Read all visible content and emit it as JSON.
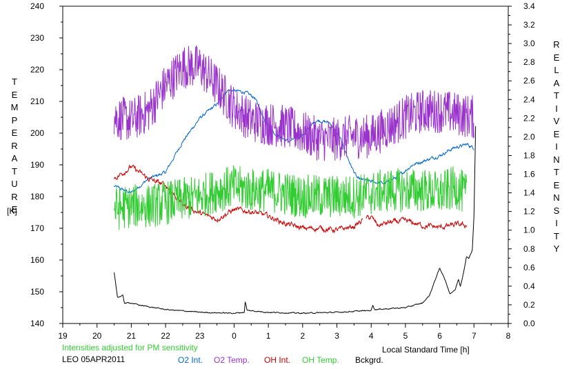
{
  "chart_data": {
    "type": "line",
    "xlabel": "Local Standard Time [h]",
    "x_tick_labels": [
      "19",
      "20",
      "21",
      "22",
      "23",
      "0",
      "1",
      "2",
      "3",
      "4",
      "5",
      "6",
      "7",
      "8"
    ],
    "left_axis": {
      "label_letters": [
        "T",
        "E",
        "M",
        "P",
        "E",
        "R",
        "A",
        "T",
        "U",
        "R",
        "E"
      ],
      "unit": "[K]",
      "ylim": [
        140,
        240
      ],
      "tick_labels": [
        "140",
        "150",
        "160",
        "170",
        "180",
        "190",
        "200",
        "210",
        "220",
        "230",
        "240"
      ]
    },
    "right_axis": {
      "label_letters_1": [
        "R",
        "E",
        "L",
        "A",
        "T",
        "I",
        "V",
        "E"
      ],
      "label_letters_2": [
        "I",
        "N",
        "T",
        "E",
        "N",
        "S",
        "I",
        "T",
        "Y"
      ],
      "ylim": [
        0,
        3.4
      ],
      "tick_labels": [
        "0.0",
        "0.2",
        "0.4",
        "0.6",
        "0.8",
        "1.0",
        "1.2",
        "1.4",
        "1.6",
        "1.8",
        "2.0",
        "2.2",
        "2.4",
        "2.6",
        "2.8",
        "3.0",
        "3.2",
        "3.4"
      ]
    },
    "note": "Intensities adjusted for PM sensitivity",
    "station": "LEO 05APR2011",
    "grid": false,
    "series": [
      {
        "name": "O2 Int.",
        "color": "#0066cc",
        "axis": "right",
        "noise": 0.025,
        "points": [
          [
            20.5,
            1.47
          ],
          [
            21.0,
            1.4
          ],
          [
            21.5,
            1.55
          ],
          [
            22.0,
            1.62
          ],
          [
            22.5,
            1.95
          ],
          [
            23.0,
            2.2
          ],
          [
            23.5,
            2.35
          ],
          [
            23.8,
            2.5
          ],
          [
            24.3,
            2.48
          ],
          [
            24.6,
            2.42
          ],
          [
            24.9,
            2.18
          ],
          [
            25.2,
            2.03
          ],
          [
            25.6,
            1.95
          ],
          [
            26.0,
            2.02
          ],
          [
            26.4,
            2.18
          ],
          [
            26.8,
            2.15
          ],
          [
            27.1,
            1.98
          ],
          [
            27.4,
            1.7
          ],
          [
            27.6,
            1.55
          ],
          [
            28.0,
            1.52
          ],
          [
            28.4,
            1.5
          ],
          [
            28.8,
            1.58
          ],
          [
            29.2,
            1.7
          ],
          [
            29.6,
            1.75
          ],
          [
            30.0,
            1.8
          ],
          [
            30.4,
            1.88
          ],
          [
            30.8,
            1.92
          ],
          [
            31.0,
            1.88
          ]
        ]
      },
      {
        "name": "O2 Temp.",
        "color": "#9933cc",
        "axis": "left",
        "noise": 7,
        "points": [
          [
            20.5,
            205
          ],
          [
            21.0,
            204
          ],
          [
            21.5,
            207
          ],
          [
            22.0,
            215
          ],
          [
            22.5,
            221
          ],
          [
            23.0,
            221
          ],
          [
            23.5,
            215
          ],
          [
            24.0,
            208
          ],
          [
            24.5,
            204
          ],
          [
            25.0,
            203
          ],
          [
            25.5,
            202
          ],
          [
            26.0,
            200
          ],
          [
            26.5,
            198
          ],
          [
            27.0,
            198
          ],
          [
            27.5,
            199
          ],
          [
            28.0,
            199
          ],
          [
            28.5,
            202
          ],
          [
            29.0,
            205
          ],
          [
            29.5,
            207
          ],
          [
            30.0,
            207
          ],
          [
            30.5,
            206
          ],
          [
            31.0,
            205
          ]
        ]
      },
      {
        "name": "OH Int.",
        "color": "#cc0000",
        "axis": "right",
        "noise": 0.04,
        "points": [
          [
            20.5,
            1.55
          ],
          [
            21.0,
            1.68
          ],
          [
            21.5,
            1.55
          ],
          [
            22.0,
            1.48
          ],
          [
            22.5,
            1.28
          ],
          [
            23.0,
            1.18
          ],
          [
            23.5,
            1.12
          ],
          [
            24.0,
            1.22
          ],
          [
            24.5,
            1.2
          ],
          [
            25.0,
            1.15
          ],
          [
            25.5,
            1.07
          ],
          [
            26.0,
            1.02
          ],
          [
            26.5,
            1.02
          ],
          [
            27.0,
            1.0
          ],
          [
            27.5,
            1.04
          ],
          [
            27.8,
            1.12
          ],
          [
            28.0,
            1.14
          ],
          [
            28.2,
            1.05
          ],
          [
            28.5,
            1.08
          ],
          [
            29.0,
            1.1
          ],
          [
            29.5,
            1.05
          ],
          [
            30.0,
            1.03
          ],
          [
            30.5,
            1.06
          ],
          [
            30.8,
            1.05
          ]
        ],
        "gap": [
          27.75,
          27.85
        ]
      },
      {
        "name": "OH Temp.",
        "color": "#33cc33",
        "axis": "left",
        "noise": 7,
        "points": [
          [
            20.5,
            176
          ],
          [
            21.0,
            177
          ],
          [
            21.5,
            177
          ],
          [
            22.0,
            178
          ],
          [
            22.5,
            179
          ],
          [
            23.0,
            180
          ],
          [
            23.5,
            182
          ],
          [
            24.0,
            183
          ],
          [
            24.5,
            182
          ],
          [
            25.0,
            182
          ],
          [
            25.5,
            181
          ],
          [
            26.0,
            180
          ],
          [
            26.5,
            180
          ],
          [
            27.0,
            180
          ],
          [
            27.5,
            180
          ],
          [
            28.0,
            181
          ],
          [
            28.5,
            182
          ],
          [
            29.0,
            182
          ],
          [
            29.5,
            182
          ],
          [
            30.0,
            181
          ],
          [
            30.5,
            183
          ],
          [
            30.8,
            180
          ]
        ]
      },
      {
        "name": "Bckgrd.",
        "color": "#000000",
        "axis": "right",
        "noise": 0.008,
        "points": [
          [
            20.5,
            0.55
          ],
          [
            20.6,
            0.28
          ],
          [
            20.75,
            0.3
          ],
          [
            20.8,
            0.22
          ],
          [
            21.0,
            0.22
          ],
          [
            21.2,
            0.2
          ],
          [
            21.5,
            0.18
          ],
          [
            22.0,
            0.15
          ],
          [
            23.0,
            0.12
          ],
          [
            24.0,
            0.11
          ],
          [
            24.3,
            0.12
          ],
          [
            24.32,
            0.24
          ],
          [
            24.38,
            0.14
          ],
          [
            25.0,
            0.12
          ],
          [
            26.0,
            0.11
          ],
          [
            27.0,
            0.12
          ],
          [
            28.0,
            0.14
          ],
          [
            28.05,
            0.2
          ],
          [
            28.1,
            0.15
          ],
          [
            29.0,
            0.17
          ],
          [
            29.5,
            0.22
          ],
          [
            29.7,
            0.3
          ],
          [
            29.9,
            0.5
          ],
          [
            30.0,
            0.59
          ],
          [
            30.1,
            0.52
          ],
          [
            30.3,
            0.32
          ],
          [
            30.45,
            0.36
          ],
          [
            30.55,
            0.48
          ],
          [
            30.6,
            0.4
          ],
          [
            30.7,
            0.55
          ],
          [
            30.78,
            0.72
          ],
          [
            30.85,
            0.7
          ],
          [
            30.95,
            0.78
          ],
          [
            31.0,
            1.15
          ],
          [
            31.05,
            2.15
          ]
        ]
      }
    ]
  }
}
